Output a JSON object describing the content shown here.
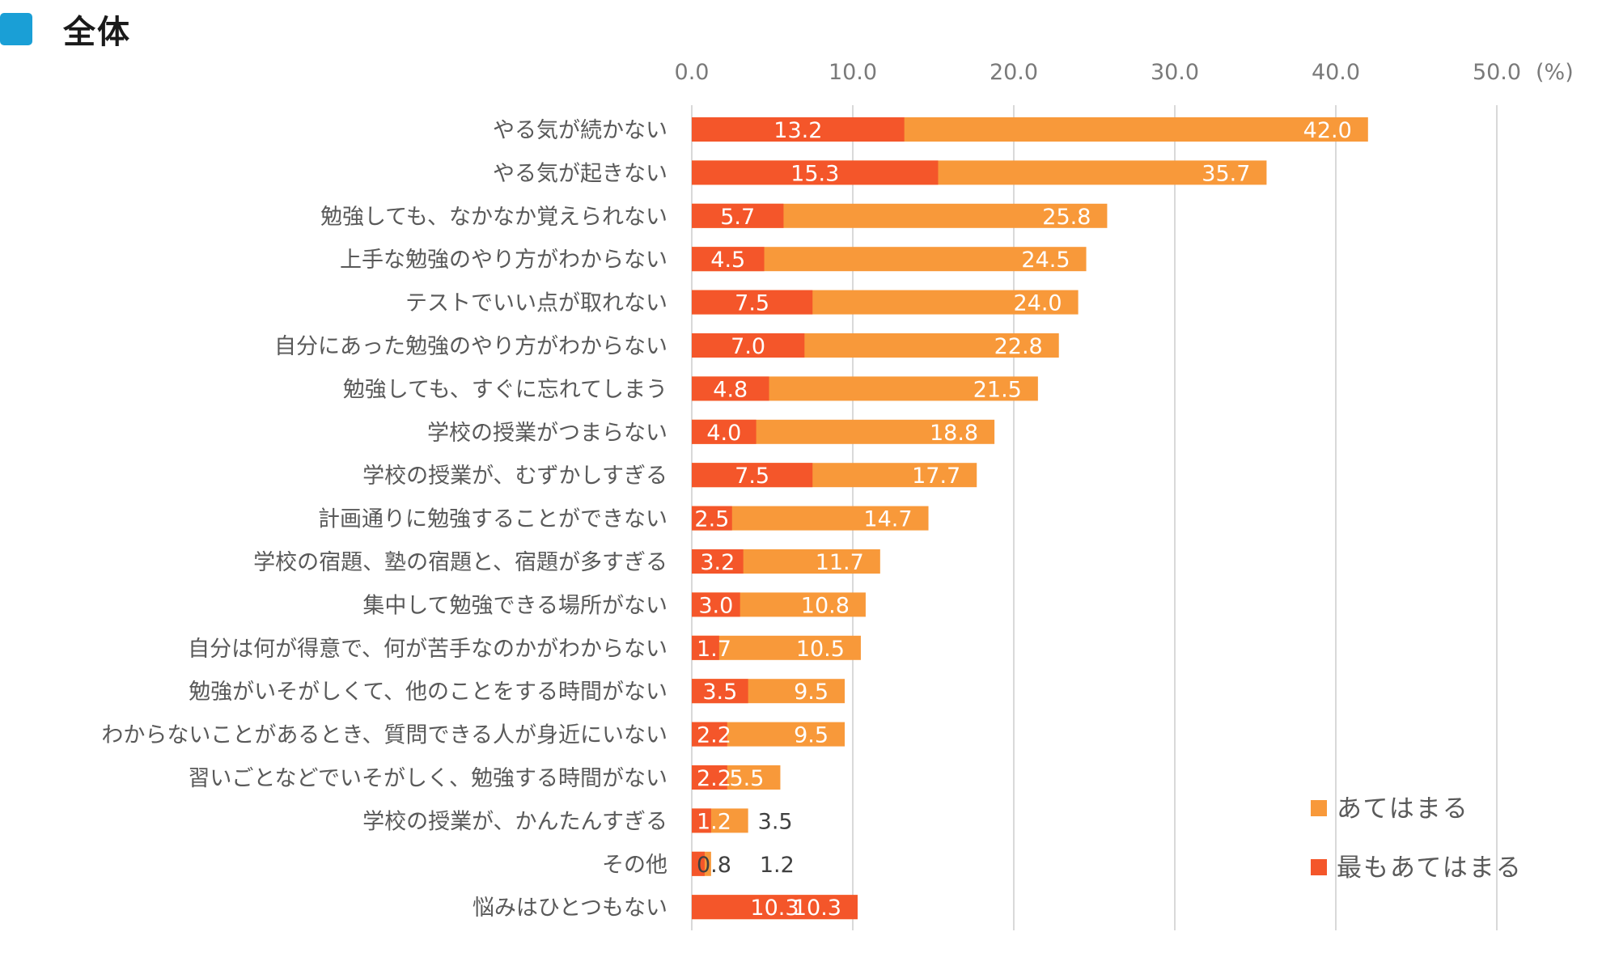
{
  "header": {
    "title": "全体"
  },
  "colors": {
    "title_square": "#1a9fd6",
    "series_total": "#f8993a",
    "series_most": "#f4562a",
    "grid": "#d9d9d9"
  },
  "chart_data": {
    "type": "bar",
    "orientation": "horizontal",
    "unit_label": "(%)",
    "xlim": [
      0,
      50
    ],
    "xticks": [
      "0.0",
      "10.0",
      "20.0",
      "30.0",
      "40.0",
      "50.0"
    ],
    "grid": true,
    "legend_position": "bottom-right",
    "categories": [
      "やる気が続かない",
      "やる気が起きない",
      "勉強しても、なかなか覚えられない",
      "上手な勉強のやり方がわからない",
      "テストでいい点が取れない",
      "自分にあった勉強のやり方がわからない",
      "勉強しても、すぐに忘れてしまう",
      "学校の授業がつまらない",
      "学校の授業が、むずかしすぎる",
      "計画通りに勉強することができない",
      "学校の宿題、塾の宿題と、宿題が多すぎる",
      "集中して勉強できる場所がない",
      "自分は何が得意で、何が苦手なのかがわからない",
      "勉強がいそがしくて、他のことをする時間がない",
      "わからないことがあるとき、質問できる人が身近にいない",
      "習いごとなどでいそがしく、勉強する時間がない",
      "学校の授業が、かんたんすぎる",
      "その他",
      "悩みはひとつもない"
    ],
    "series": [
      {
        "name": "あてはまる",
        "values": [
          42.0,
          35.7,
          25.8,
          24.5,
          24.0,
          22.8,
          21.5,
          18.8,
          17.7,
          14.7,
          11.7,
          10.8,
          10.5,
          9.5,
          9.5,
          5.5,
          3.5,
          1.2,
          10.3
        ],
        "labels": [
          "42.0",
          "35.7",
          "25.8",
          "24.5",
          "24.0",
          "22.8",
          "21.5",
          "18.8",
          "17.7",
          "14.7",
          "11.7",
          "10.8",
          "10.5",
          "9.5",
          "9.5",
          "5.5",
          "3.5",
          "1.2",
          "10.3"
        ]
      },
      {
        "name": "最もあてはまる",
        "values": [
          13.2,
          15.3,
          5.7,
          4.5,
          7.5,
          7.0,
          4.8,
          4.0,
          7.5,
          2.5,
          3.2,
          3.0,
          1.7,
          3.5,
          2.2,
          2.2,
          1.2,
          0.8,
          10.3
        ],
        "labels": [
          "13.2",
          "15.3",
          "5.7",
          "4.5",
          "7.5",
          "7.0",
          "4.8",
          "4.0",
          "7.5",
          "2.5",
          "3.2",
          "3.0",
          "1.7",
          "3.5",
          "2.2",
          "2.2",
          "1.2",
          "0.8",
          "10.3"
        ]
      }
    ]
  }
}
